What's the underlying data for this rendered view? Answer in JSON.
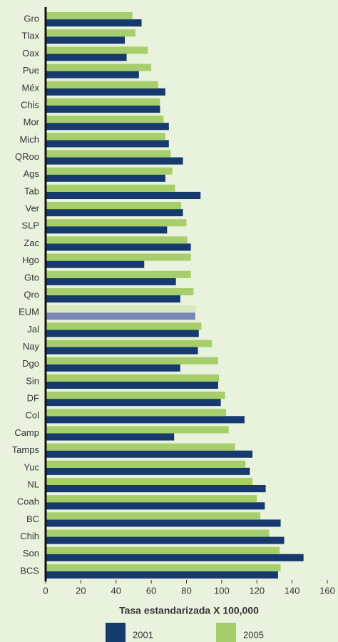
{
  "chart_data": {
    "type": "hbar",
    "x_label": "Tasa estandarizada X 100,000",
    "categories": [
      "Gro",
      "Tlax",
      "Oax",
      "Pue",
      "Méx",
      "Chis",
      "Mor",
      "Mich",
      "QRoo",
      "Ags",
      "Tab",
      "Ver",
      "SLP",
      "Zac",
      "Hgo",
      "Gto",
      "Qro",
      "EUM",
      "Jal",
      "Nay",
      "Dgo",
      "Sin",
      "DF",
      "Col",
      "Camp",
      "Tamps",
      "Yuc",
      "NL",
      "Coah",
      "BC",
      "Chih",
      "Son",
      "BCS"
    ],
    "highlight": "EUM",
    "series": [
      {
        "name": "2001",
        "color": "#173a6e",
        "highlight_color": "#7b86b8",
        "values": [
          54.5,
          45,
          46,
          53,
          68,
          65,
          70,
          70,
          78,
          68,
          88,
          78,
          69,
          82.5,
          56,
          74,
          76.5,
          85,
          87,
          86.5,
          76.5,
          98,
          99.5,
          113,
          73,
          117.5,
          116,
          125,
          124.5,
          133.5,
          135.5,
          146.5,
          132
        ]
      },
      {
        "name": "2005",
        "color": "#a6cf6b",
        "highlight_color": "#d9e9bd",
        "values": [
          49.3,
          51,
          58,
          60,
          64,
          65,
          67,
          68,
          71,
          72,
          73.5,
          77,
          80,
          80.5,
          82.5,
          82.5,
          84,
          85.5,
          88.5,
          94.5,
          98,
          98.5,
          102,
          102.5,
          104,
          107.5,
          113.5,
          117.5,
          120,
          122,
          127,
          133,
          133.5
        ]
      }
    ],
    "xlim": [
      0,
      160
    ],
    "xticks": [
      0,
      20,
      40,
      60,
      80,
      100,
      120,
      140,
      160
    ]
  }
}
